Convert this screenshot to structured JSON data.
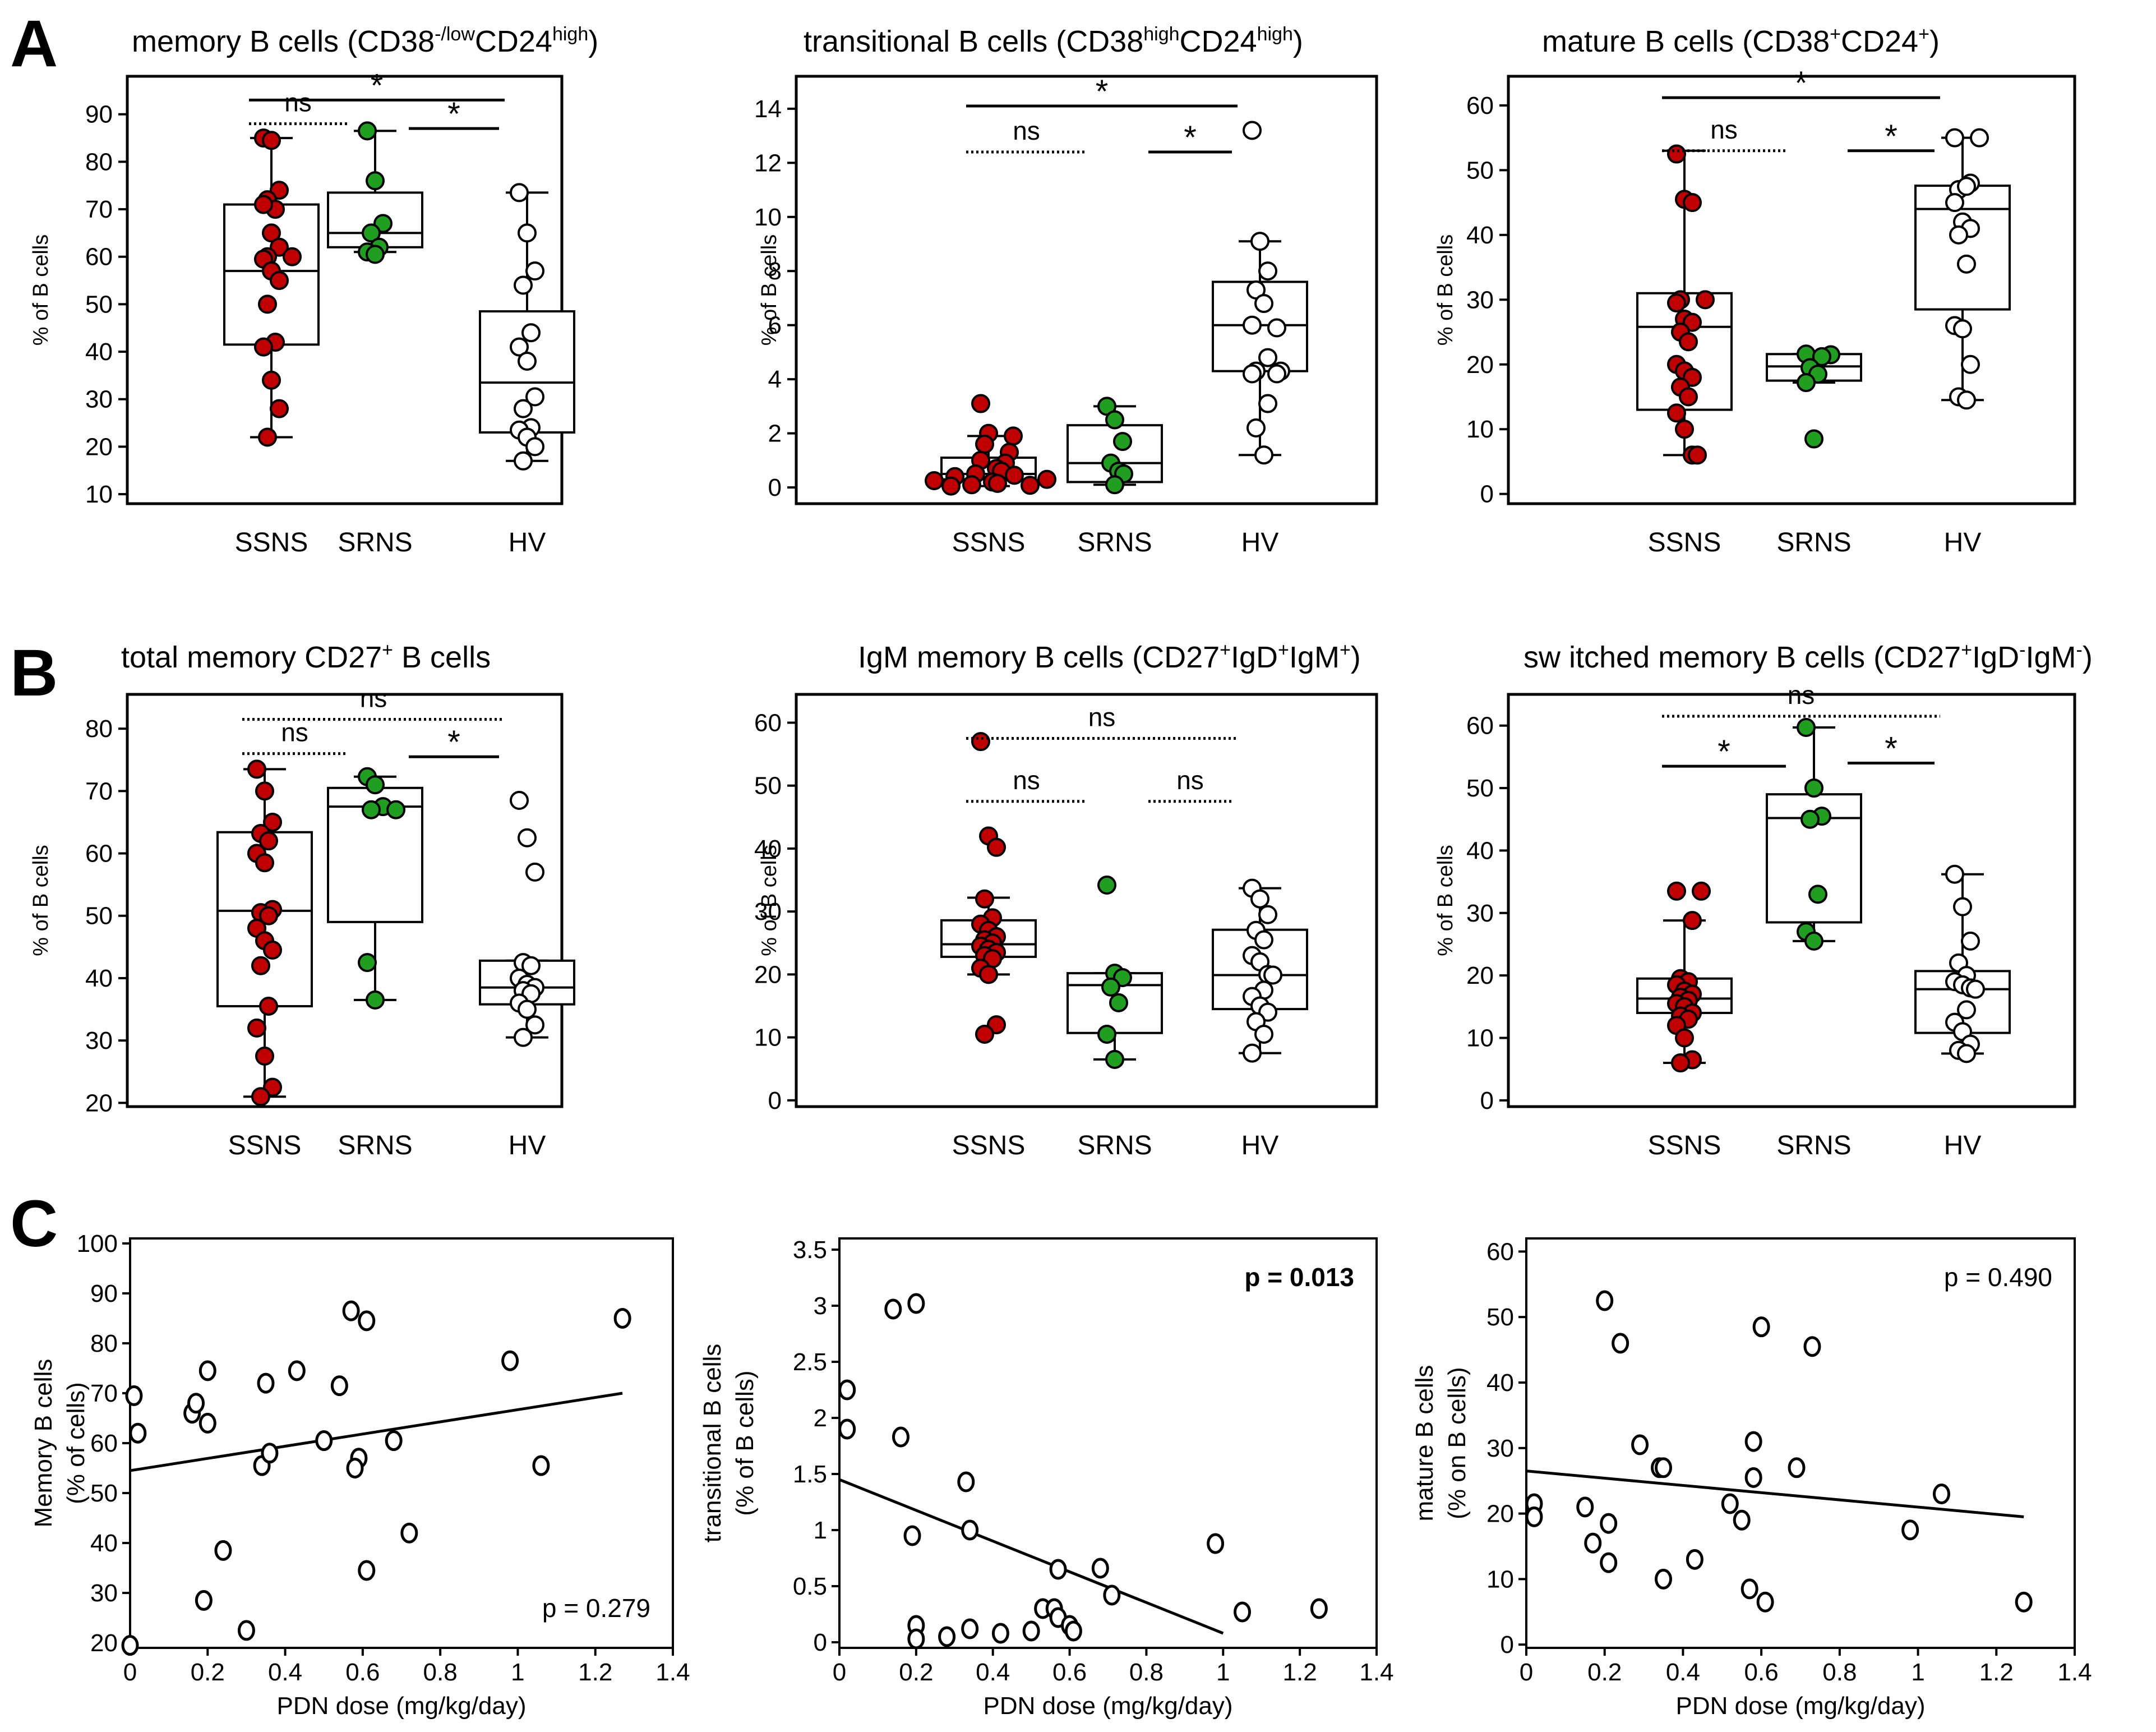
{
  "figure": {
    "panel_labels": [
      "A",
      "B",
      "C"
    ],
    "ylabel_box": "% of B cells",
    "categories": [
      "SSNS",
      "SRNS",
      "HV"
    ],
    "colors": {
      "SSNS": "#c00000",
      "SRNS": "#1f9e1f",
      "HV": "#ffffff",
      "edge": "#000000"
    }
  },
  "chart_data": [
    {
      "type": "box",
      "panel": "A",
      "title_main": "memory B cells",
      "title_sub": "(CD38",
      "title_sup1": "-/low",
      "title_mid": "CD24",
      "title_sup2": "high",
      "title_end": ")",
      "ylabel": "% of B cells",
      "ylim": [
        8,
        98
      ],
      "yticks": [
        10,
        20,
        30,
        40,
        50,
        60,
        70,
        80,
        90
      ],
      "categories": [
        "SSNS",
        "SRNS",
        "HV"
      ],
      "boxes": [
        {
          "min": 22,
          "q1": 41.5,
          "median": 57,
          "q3": 71,
          "max": 85
        },
        {
          "min": 61,
          "q1": 62,
          "median": 65,
          "q3": 73.5,
          "max": 86.5
        },
        {
          "min": 17,
          "q1": 23,
          "median": 33.5,
          "q3": 48.5,
          "max": 73.5
        }
      ],
      "points": [
        [
          85,
          84.5,
          74,
          72,
          70,
          71,
          65,
          62,
          60,
          60,
          59.5,
          57,
          55,
          50,
          42,
          41,
          34,
          28,
          22
        ],
        [
          86.5,
          76,
          67,
          65,
          62,
          61,
          60.5
        ],
        [
          73.5,
          65,
          57,
          54,
          44,
          41,
          38,
          30.5,
          28,
          24,
          23.5,
          22,
          20,
          17
        ]
      ],
      "comparisons": [
        {
          "from": 0,
          "to": 2,
          "label": "*",
          "style": "solid",
          "y": 93
        },
        {
          "from": 0,
          "to": 1,
          "label": "ns",
          "style": "dotted",
          "y": 88
        },
        {
          "from": 1,
          "to": 2,
          "label": "*",
          "style": "solid",
          "y": 87
        }
      ]
    },
    {
      "type": "box",
      "panel": "A",
      "title_main": "transitional B cells",
      "title_sub": "(CD38",
      "title_sup1": "high",
      "title_mid": "CD24",
      "title_sup2": "high",
      "title_end": ")",
      "ylabel": "% of B cells",
      "ylim": [
        -0.6,
        15.2
      ],
      "yticks": [
        0,
        2,
        4,
        6,
        8,
        10,
        12,
        14
      ],
      "categories": [
        "SSNS",
        "SRNS",
        "HV"
      ],
      "boxes": [
        {
          "min": 0.05,
          "q1": 0.3,
          "median": 0.5,
          "q3": 1.1,
          "max": 1.9
        },
        {
          "min": 0.1,
          "q1": 0.2,
          "median": 0.9,
          "q3": 2.3,
          "max": 3.0
        },
        {
          "min": 1.2,
          "q1": 4.3,
          "median": 6.0,
          "q3": 7.6,
          "max": 9.1
        }
      ],
      "points": [
        [
          3.1,
          2.0,
          1.9,
          1.6,
          1.3,
          1.0,
          0.9,
          0.7,
          0.6,
          0.5,
          0.45,
          0.4,
          0.3,
          0.25,
          0.2,
          0.15,
          0.1,
          0.08,
          0.05
        ],
        [
          3.0,
          2.5,
          1.7,
          0.9,
          0.6,
          0.5,
          0.1
        ],
        [
          13.2,
          9.1,
          8.0,
          7.3,
          6.8,
          6.0,
          5.9,
          4.8,
          4.3,
          4.3,
          4.2,
          4.2,
          3.1,
          2.2,
          1.2
        ]
      ],
      "comparisons": [
        {
          "from": 0,
          "to": 2,
          "label": "*",
          "style": "solid",
          "y": 14.1
        },
        {
          "from": 0,
          "to": 1,
          "label": "ns",
          "style": "dotted",
          "y": 12.4
        },
        {
          "from": 1,
          "to": 2,
          "label": "*",
          "style": "solid",
          "y": 12.4
        }
      ]
    },
    {
      "type": "box",
      "panel": "A",
      "title_main": "mature B cells",
      "title_sub": "(CD38",
      "title_sup1": "+",
      "title_mid": "CD24",
      "title_sup2": "+",
      "title_end": ")",
      "ylabel": "% of B cells",
      "ylim": [
        -1.5,
        64.5
      ],
      "yticks": [
        0,
        10,
        20,
        30,
        40,
        50,
        60
      ],
      "categories": [
        "SSNS",
        "SRNS",
        "HV"
      ],
      "boxes": [
        {
          "min": 6,
          "q1": 13,
          "median": 25.8,
          "q3": 31,
          "max": 53
        },
        {
          "min": 17.2,
          "q1": 17.5,
          "median": 19.7,
          "q3": 21.6,
          "max": 21.6
        },
        {
          "min": 14.5,
          "q1": 28.5,
          "median": 44,
          "q3": 47.6,
          "max": 55
        }
      ],
      "points": [
        [
          52.5,
          45.5,
          45,
          30,
          30,
          29.5,
          27,
          26.5,
          25,
          23.5,
          20,
          19,
          18,
          16.5,
          15,
          12.5,
          10,
          6,
          6
        ],
        [
          21.6,
          21.5,
          21.2,
          19.5,
          18.5,
          17.2,
          8.5
        ],
        [
          55,
          55,
          48,
          47,
          47.5,
          45,
          42,
          41,
          40,
          35.5,
          26,
          25.5,
          20,
          15,
          14.5
        ]
      ],
      "comparisons": [
        {
          "from": 0,
          "to": 2,
          "label": "*",
          "style": "solid",
          "y": 61.2
        },
        {
          "from": 0,
          "to": 1,
          "label": "ns",
          "style": "dotted",
          "y": 53
        },
        {
          "from": 1,
          "to": 2,
          "label": "*",
          "style": "solid",
          "y": 53
        }
      ]
    },
    {
      "type": "box",
      "panel": "B",
      "title_main": "total memory  CD27",
      "title_sub": "",
      "title_sup1": "+",
      "title_mid": " B cells",
      "title_sup2": "",
      "title_end": "",
      "ylabel": "% of B cells",
      "ylim": [
        19.4,
        85.5
      ],
      "yticks": [
        20,
        30,
        40,
        50,
        60,
        70,
        80
      ],
      "categories": [
        "SSNS",
        "SRNS",
        "HV"
      ],
      "boxes": [
        {
          "min": 21,
          "q1": 35.5,
          "median": 50.8,
          "q3": 63.4,
          "max": 73.5
        },
        {
          "min": 36.5,
          "q1": 49,
          "median": 67.5,
          "q3": 70.5,
          "max": 72.3
        },
        {
          "min": 30.5,
          "q1": 35.8,
          "median": 38.5,
          "q3": 42.8,
          "max": 42.8
        }
      ],
      "points": [
        [
          73.5,
          70,
          65,
          63.2,
          62,
          60,
          58.5,
          51,
          50.5,
          50,
          48,
          46,
          44.5,
          42,
          35.5,
          32,
          27.5,
          22.5,
          21
        ],
        [
          72.3,
          71,
          67.5,
          67,
          67,
          42.5,
          36.5
        ],
        [
          68.5,
          62.5,
          57,
          42.5,
          42,
          40,
          39,
          38.5,
          38,
          37.5,
          36,
          35,
          32.5,
          30.5
        ]
      ],
      "comparisons": [
        {
          "from": 0,
          "to": 2,
          "label": "ns",
          "style": "dotted",
          "y": 81.5
        },
        {
          "from": 0,
          "to": 1,
          "label": "ns",
          "style": "dotted",
          "y": 76
        },
        {
          "from": 1,
          "to": 2,
          "label": "*",
          "style": "solid",
          "y": 75.5
        }
      ]
    },
    {
      "type": "box",
      "panel": "B",
      "title_main": "IgM memory B cells",
      "title_sub": "(CD27",
      "title_sup1": "+",
      "title_mid": "IgD",
      "title_sup2": "+",
      "title_end": "IgM",
      "title_sup3": "+",
      "title_close": ")",
      "ylabel": "% of B cells",
      "ylim": [
        -1,
        64.5
      ],
      "yticks": [
        0,
        10,
        20,
        30,
        40,
        50,
        60
      ],
      "categories": [
        "SSNS",
        "SRNS",
        "HV"
      ],
      "boxes": [
        {
          "min": 20,
          "q1": 22.8,
          "median": 24.8,
          "q3": 28.6,
          "max": 32.2
        },
        {
          "min": 6.5,
          "q1": 10.7,
          "median": 18.3,
          "q3": 20.2,
          "max": 20.2
        },
        {
          "min": 7.5,
          "q1": 14.5,
          "median": 19.9,
          "q3": 27.1,
          "max": 33.7
        }
      ],
      "points": [
        [
          57,
          42,
          40.2,
          32,
          29,
          28,
          27,
          26,
          25.5,
          25,
          24.5,
          24,
          23.5,
          23,
          22.5,
          21,
          20,
          12,
          10.5
        ],
        [
          34.2,
          20.2,
          19.5,
          18,
          15.5,
          10.5,
          6.5
        ],
        [
          33.7,
          32,
          29.5,
          27,
          25.5,
          23,
          22,
          20,
          19.9,
          17.5,
          16.5,
          15,
          14,
          12.5,
          10.5,
          7.5
        ]
      ],
      "comparisons": [
        {
          "from": 0,
          "to": 2,
          "label": "ns",
          "style": "dotted",
          "y": 57.5
        },
        {
          "from": 0,
          "to": 1,
          "label": "ns",
          "style": "dotted",
          "y": 47.5
        },
        {
          "from": 1,
          "to": 2,
          "label": "ns",
          "style": "dotted",
          "y": 47.5
        }
      ]
    },
    {
      "type": "box",
      "panel": "B",
      "title_main": "sw itched memory B cells",
      "title_sub": "(CD27",
      "title_sup1": "+",
      "title_mid": "IgD",
      "title_sup2": "-",
      "title_end": "IgM",
      "title_sup3": "-",
      "title_close": ")",
      "ylabel": "% of B cells",
      "ylim": [
        -1,
        65
      ],
      "yticks": [
        0,
        10,
        20,
        30,
        40,
        50,
        60
      ],
      "categories": [
        "SSNS",
        "SRNS",
        "HV"
      ],
      "boxes": [
        {
          "min": 6,
          "q1": 14,
          "median": 16.3,
          "q3": 19.5,
          "max": 28.8
        },
        {
          "min": 25.5,
          "q1": 28.5,
          "median": 45.2,
          "q3": 49,
          "max": 59.7
        },
        {
          "min": 7.5,
          "q1": 10.8,
          "median": 17.8,
          "q3": 20.7,
          "max": 36.2
        }
      ],
      "points": [
        [
          33.5,
          33.5,
          28.8,
          19.5,
          19,
          18.5,
          17.5,
          17,
          16.5,
          16,
          15.5,
          15,
          14,
          13.5,
          13,
          12,
          10,
          6.5,
          6
        ],
        [
          59.7,
          50,
          45.5,
          45,
          33,
          27,
          25.5
        ],
        [
          36.2,
          31,
          25.5,
          22,
          20,
          19,
          18.5,
          18,
          17.8,
          14.5,
          12.5,
          11,
          9,
          8,
          7.5
        ]
      ],
      "comparisons": [
        {
          "from": 0,
          "to": 2,
          "label": "ns",
          "style": "dotted",
          "y": 61.5
        },
        {
          "from": 0,
          "to": 1,
          "label": "*",
          "style": "solid",
          "y": 53.5
        },
        {
          "from": 1,
          "to": 2,
          "label": "*",
          "style": "solid",
          "y": 54
        }
      ]
    },
    {
      "type": "scatter",
      "panel": "C",
      "ylabel_lines": [
        "Memory B cells",
        "(% of cells)"
      ],
      "xlabel": "PDN dose (mg/kg/day)",
      "xlim": [
        0,
        1.4
      ],
      "ylim": [
        19,
        101
      ],
      "xticks": [
        0,
        0.2,
        0.4,
        0.6,
        0.8,
        1.0,
        1.2,
        1.4
      ],
      "yticks": [
        20,
        30,
        40,
        50,
        60,
        70,
        80,
        90,
        100
      ],
      "p_text": "p = 0.279",
      "p_bold": false,
      "p_pos": "bottom-right",
      "points": [
        [
          0.01,
          69.5
        ],
        [
          0.02,
          62
        ],
        [
          0.0,
          19.5
        ],
        [
          0.16,
          66
        ],
        [
          0.17,
          68
        ],
        [
          0.2,
          74.5
        ],
        [
          0.2,
          64
        ],
        [
          0.19,
          28.5
        ],
        [
          0.24,
          38.5
        ],
        [
          0.3,
          22.5
        ],
        [
          0.34,
          55.5
        ],
        [
          0.35,
          72
        ],
        [
          0.36,
          58
        ],
        [
          0.43,
          74.5
        ],
        [
          0.5,
          60.5
        ],
        [
          0.54,
          71.5
        ],
        [
          0.57,
          86.5
        ],
        [
          0.59,
          57
        ],
        [
          0.58,
          55
        ],
        [
          0.61,
          84.5
        ],
        [
          0.61,
          34.5
        ],
        [
          0.68,
          60.5
        ],
        [
          0.72,
          42
        ],
        [
          0.98,
          76.5
        ],
        [
          1.06,
          55.5
        ],
        [
          1.27,
          85
        ]
      ],
      "fit": {
        "x0": 0,
        "y0": 54.5,
        "x1": 1.27,
        "y1": 70
      }
    },
    {
      "type": "scatter",
      "panel": "C",
      "ylabel_lines": [
        "transitional B cells",
        "(% of B cells)"
      ],
      "xlabel": "PDN dose (mg/kg/day)",
      "xlim": [
        0,
        1.4
      ],
      "ylim": [
        -0.05,
        3.6
      ],
      "xticks": [
        0,
        0.2,
        0.4,
        0.6,
        0.8,
        1.0,
        1.2,
        1.4
      ],
      "yticks": [
        0,
        0.5,
        1.0,
        1.5,
        2.0,
        2.5,
        3.0,
        3.5
      ],
      "p_text": "p = 0.013",
      "p_bold": true,
      "p_pos": "top-right",
      "points": [
        [
          0.02,
          2.25
        ],
        [
          0.02,
          1.9
        ],
        [
          0.14,
          2.97
        ],
        [
          0.2,
          3.02
        ],
        [
          0.16,
          1.83
        ],
        [
          0.19,
          0.95
        ],
        [
          0.2,
          0.15
        ],
        [
          0.2,
          0.03
        ],
        [
          0.28,
          0.05
        ],
        [
          0.33,
          1.43
        ],
        [
          0.34,
          1.0
        ],
        [
          0.34,
          0.12
        ],
        [
          0.42,
          0.08
        ],
        [
          0.5,
          0.1
        ],
        [
          0.53,
          0.3
        ],
        [
          0.56,
          0.3
        ],
        [
          0.57,
          0.65
        ],
        [
          0.57,
          0.22
        ],
        [
          0.6,
          0.15
        ],
        [
          0.61,
          0.1
        ],
        [
          0.68,
          0.66
        ],
        [
          0.71,
          0.42
        ],
        [
          0.98,
          0.88
        ],
        [
          1.05,
          0.27
        ],
        [
          1.25,
          0.3
        ]
      ],
      "fit": {
        "x0": 0,
        "y0": 1.45,
        "x1": 1.0,
        "y1": 0.08
      }
    },
    {
      "type": "scatter",
      "panel": "C",
      "ylabel_lines": [
        "mature B cells",
        "(% on B cells)"
      ],
      "xlabel": "PDN dose (mg/kg/day)",
      "xlim": [
        0,
        1.4
      ],
      "ylim": [
        -0.5,
        62
      ],
      "xticks": [
        0,
        0.2,
        0.4,
        0.6,
        0.8,
        1.0,
        1.2,
        1.4
      ],
      "yticks": [
        0,
        10,
        20,
        30,
        40,
        50,
        60
      ],
      "p_text": "p = 0.490",
      "p_bold": false,
      "p_pos": "top-right",
      "points": [
        [
          0.02,
          21.5
        ],
        [
          0.02,
          19.5
        ],
        [
          0.15,
          21
        ],
        [
          0.17,
          15.5
        ],
        [
          0.2,
          52.5
        ],
        [
          0.21,
          18.5
        ],
        [
          0.21,
          12.5
        ],
        [
          0.24,
          46
        ],
        [
          0.29,
          30.5
        ],
        [
          0.34,
          27
        ],
        [
          0.35,
          27
        ],
        [
          0.35,
          10
        ],
        [
          0.43,
          13
        ],
        [
          0.52,
          21.5
        ],
        [
          0.55,
          19
        ],
        [
          0.57,
          8.5
        ],
        [
          0.58,
          25.5
        ],
        [
          0.58,
          31
        ],
        [
          0.6,
          48.5
        ],
        [
          0.61,
          6.5
        ],
        [
          0.69,
          27
        ],
        [
          0.73,
          45.5
        ],
        [
          0.98,
          17.5
        ],
        [
          1.06,
          23
        ],
        [
          1.27,
          6.5
        ]
      ],
      "fit": {
        "x0": 0,
        "y0": 26.5,
        "x1": 1.27,
        "y1": 19.5
      }
    }
  ]
}
